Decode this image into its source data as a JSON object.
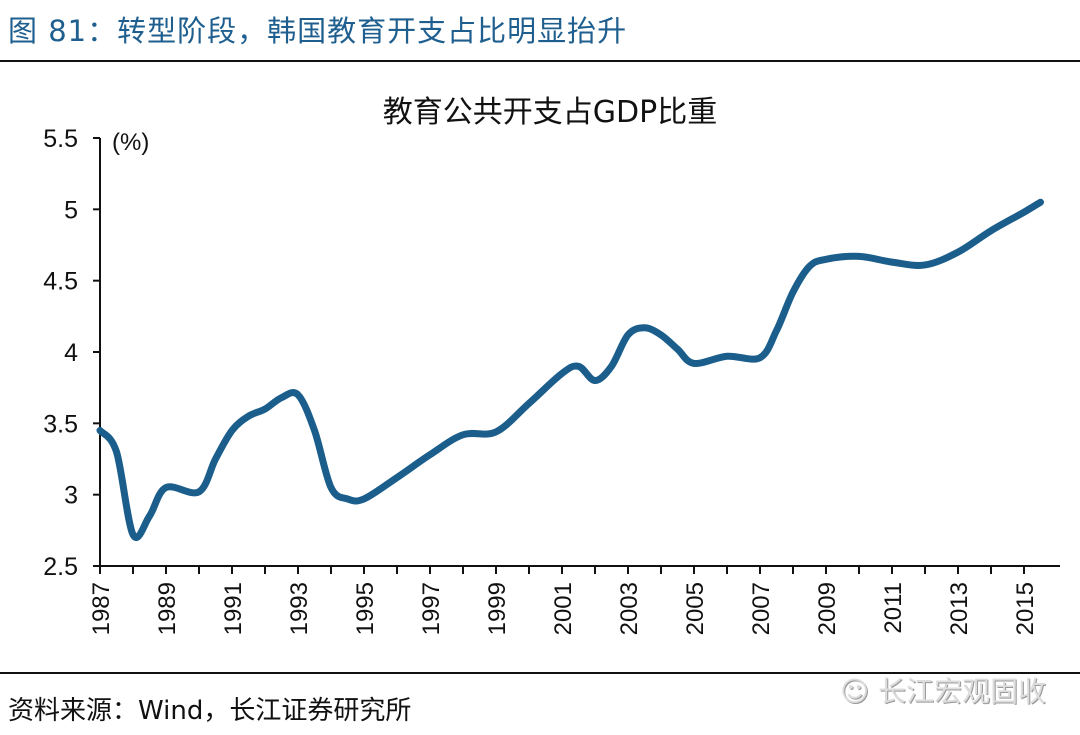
{
  "figure_title": "图 81：转型阶段，韩国教育开支占比明显抬升",
  "source": "资料来源：Wind，长江证券研究所",
  "watermark": "长江宏观固收",
  "colors": {
    "line": "#1b5e8c",
    "title": "#1f5f8f"
  },
  "chart_data": {
    "type": "line",
    "title": "教育公共开支占GDP比重",
    "ylabel": "(%)",
    "xlabel": "",
    "ylim": [
      2.5,
      5.5
    ],
    "yticks": [
      "2.5",
      "3",
      "3.5",
      "4",
      "4.5",
      "5",
      "5.5"
    ],
    "xlim": [
      1987,
      2015.5
    ],
    "xticks": [
      "1987",
      "1989",
      "1991",
      "1993",
      "1995",
      "1997",
      "1999",
      "2001",
      "2003",
      "2005",
      "2007",
      "2009",
      "2011",
      "2013",
      "2015"
    ],
    "grid": false,
    "series": [
      {
        "x": [
          1987,
          1987.5,
          1988,
          1988.5,
          1989,
          1990,
          1990.5,
          1991,
          1991.5,
          1992,
          1992.5,
          1993,
          1993.5,
          1994,
          1994.5,
          1995,
          1996,
          1997,
          1998,
          1999,
          2000,
          2001,
          2001.5,
          2002,
          2002.5,
          2003,
          2003.5,
          2004,
          2004.5,
          2005,
          2006,
          2007,
          2007.5,
          2008,
          2008.5,
          2009,
          2010,
          2011,
          2012,
          2013,
          2014,
          2015,
          2015.5
        ],
        "y": [
          3.45,
          3.3,
          2.72,
          2.85,
          3.05,
          3.02,
          3.25,
          3.45,
          3.55,
          3.6,
          3.68,
          3.7,
          3.45,
          3.05,
          2.97,
          2.97,
          3.12,
          3.28,
          3.42,
          3.44,
          3.64,
          3.85,
          3.9,
          3.8,
          3.9,
          4.12,
          4.17,
          4.12,
          4.02,
          3.92,
          3.97,
          3.96,
          4.15,
          4.42,
          4.6,
          4.65,
          4.67,
          4.63,
          4.61,
          4.7,
          4.85,
          4.98,
          5.05
        ]
      }
    ]
  }
}
